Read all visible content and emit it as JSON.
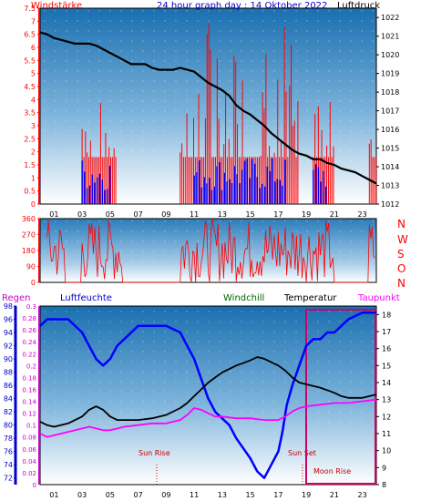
{
  "header": {
    "left": "Windstärke",
    "center": "24 hour graph day : 14 Oktober 2022",
    "right": "Luftdruck"
  },
  "wind_direction_labels": [
    "N",
    "W",
    "S",
    "O",
    "N"
  ],
  "bottom_headers": {
    "regen": "Regen",
    "luftfeuchte": "Luftfeuchte",
    "windchill": "Windchill",
    "temperatur": "Temperatur",
    "taupunkt": "Taupunkt"
  },
  "annotations": {
    "sun_rise": "Sun Rise",
    "sun_set": "Sun Set",
    "moon_rise": "Moon Rise"
  },
  "colors": {
    "bg_top": "#1a6fb0",
    "bg_bottom": "#ffffff",
    "wind": "#ff0000",
    "gust": "#0000ff",
    "pressure": "#000000",
    "humidity": "#0000ff",
    "temperature": "#000000",
    "dewpoint": "#ff00ff",
    "windchill": "#006400",
    "rain": "#ff0000",
    "moon": "#cc0066"
  },
  "chart_data": [
    {
      "type": "line",
      "panel": "wind-pressure",
      "x_ticks": [
        "01",
        "03",
        "05",
        "07",
        "09",
        "11",
        "13",
        "15",
        "17",
        "19",
        "21",
        "23"
      ],
      "xlim": [
        0,
        24
      ],
      "left_axis": {
        "label": "Windstärke",
        "ylim": [
          0,
          7.5
        ],
        "ticks": [
          "0",
          "0.5",
          "1",
          "1.5",
          "2",
          "2.5",
          "3",
          "3.5",
          "4",
          "4.5",
          "5",
          "5.5",
          "6",
          "6.5",
          "7",
          "7.5"
        ]
      },
      "right_axis": {
        "label": "Luftdruck",
        "ylim": [
          1012,
          1022.5
        ],
        "ticks": [
          "1012",
          "1013",
          "1014",
          "1015",
          "1016",
          "1017",
          "1018",
          "1019",
          "1020",
          "1021",
          "1022"
        ]
      },
      "series": [
        {
          "name": "Luftdruck",
          "axis": "right",
          "x": [
            0,
            0.5,
            1,
            1.5,
            2,
            2.5,
            3,
            3.5,
            4,
            4.5,
            5,
            5.5,
            6,
            6.5,
            7,
            7.5,
            8,
            8.5,
            9,
            9.5,
            10,
            10.5,
            11,
            11.5,
            12,
            12.5,
            13,
            13.5,
            14,
            14.5,
            15,
            15.5,
            16,
            16.5,
            17,
            17.5,
            18,
            18.5,
            19,
            19.5,
            20,
            20.5,
            21,
            21.5,
            22,
            22.5,
            23,
            23.5,
            24
          ],
          "y": [
            1021.2,
            1021.1,
            1020.9,
            1020.8,
            1020.7,
            1020.6,
            1020.6,
            1020.6,
            1020.5,
            1020.3,
            1020.1,
            1019.9,
            1019.7,
            1019.5,
            1019.5,
            1019.5,
            1019.3,
            1019.2,
            1019.2,
            1019.2,
            1019.3,
            1019.2,
            1019.1,
            1018.8,
            1018.5,
            1018.3,
            1018.1,
            1017.8,
            1017.3,
            1017.0,
            1016.8,
            1016.5,
            1016.2,
            1015.8,
            1015.5,
            1015.2,
            1014.9,
            1014.7,
            1014.6,
            1014.4,
            1014.4,
            1014.2,
            1014.1,
            1013.9,
            1013.8,
            1013.7,
            1013.5,
            1013.3,
            1013.1
          ]
        }
      ]
    },
    {
      "type": "line",
      "panel": "wind-direction",
      "xlim": [
        0,
        24
      ],
      "ylim": [
        0,
        360
      ],
      "ticks": [
        "0",
        "90",
        "180",
        "270",
        "360"
      ]
    },
    {
      "type": "line",
      "panel": "humidity-temperature",
      "x_ticks": [
        "01",
        "03",
        "05",
        "07",
        "09",
        "11",
        "13",
        "15",
        "17",
        "19",
        "21",
        "23"
      ],
      "xlim": [
        0,
        24
      ],
      "humidity_axis": {
        "label": "Luftfeuchte",
        "ylim": [
          71,
          98
        ],
        "ticks": [
          "72",
          "74",
          "76",
          "78",
          "80",
          "82",
          "84",
          "86",
          "88",
          "90",
          "92",
          "94",
          "96",
          "98"
        ]
      },
      "rain_axis": {
        "label": "Regen",
        "ylim": [
          0,
          0.3
        ],
        "ticks": [
          "0",
          "0.02",
          "0.04",
          "0.06",
          "0.08",
          "0.1",
          "0.12",
          "0.14",
          "0.16",
          "0.18",
          "0.2",
          "0.22",
          "0.24",
          "0.26",
          "0.28",
          "0.3"
        ]
      },
      "temp_axis": {
        "label": "Temperatur",
        "ylim": [
          8,
          18.5
        ],
        "ticks": [
          "8",
          "9",
          "10",
          "11",
          "12",
          "13",
          "14",
          "15",
          "16",
          "17",
          "18"
        ]
      },
      "series": [
        {
          "name": "Luftfeuchte",
          "axis": "humidity",
          "x": [
            0,
            0.5,
            1,
            2,
            3,
            3.5,
            4,
            4.5,
            5,
            5.5,
            6,
            7,
            8,
            9,
            10,
            10.5,
            11,
            11.5,
            12,
            12.5,
            13,
            13.5,
            14,
            15,
            15.5,
            16,
            16.5,
            17,
            17.3,
            17.6,
            18,
            18.5,
            19,
            19.5,
            20,
            20.5,
            21,
            21.5,
            22,
            23,
            24
          ],
          "y": [
            95,
            96,
            96,
            96,
            94,
            92,
            90,
            89,
            90,
            92,
            93,
            95,
            95,
            95,
            94,
            92,
            90,
            87,
            84,
            82,
            81,
            80,
            78,
            75,
            73,
            72,
            74,
            76,
            79,
            83,
            86,
            89,
            92,
            93,
            93,
            94,
            94,
            95,
            96,
            97,
            97
          ]
        },
        {
          "name": "Temperatur",
          "axis": "temp",
          "x": [
            0,
            0.5,
            1,
            2,
            3,
            3.5,
            4,
            4.5,
            5,
            5.5,
            6,
            7,
            8,
            9,
            10,
            10.5,
            11,
            11.5,
            12,
            12.5,
            13,
            13.5,
            14,
            15,
            15.5,
            16,
            16.5,
            17,
            17.5,
            18,
            18.5,
            19,
            20,
            21,
            21.5,
            22,
            23,
            24
          ],
          "y": [
            11.7,
            11.5,
            11.4,
            11.6,
            12.0,
            12.4,
            12.6,
            12.4,
            12.0,
            11.8,
            11.8,
            11.8,
            11.9,
            12.1,
            12.5,
            12.8,
            13.2,
            13.6,
            14.0,
            14.3,
            14.6,
            14.8,
            15.0,
            15.3,
            15.5,
            15.4,
            15.2,
            15.0,
            14.7,
            14.3,
            14.0,
            13.9,
            13.7,
            13.4,
            13.2,
            13.1,
            13.1,
            13.3
          ]
        },
        {
          "name": "Taupunkt",
          "axis": "temp",
          "x": [
            0,
            0.5,
            1,
            2,
            3,
            3.5,
            4,
            4.5,
            5,
            5.5,
            6,
            7,
            8,
            9,
            10,
            10.5,
            11,
            11.5,
            12,
            12.5,
            13,
            14,
            15,
            16,
            17,
            17.5,
            18,
            18.5,
            19,
            20,
            21,
            22,
            23,
            24
          ],
          "y": [
            11.0,
            10.8,
            10.9,
            11.1,
            11.3,
            11.4,
            11.3,
            11.2,
            11.2,
            11.3,
            11.4,
            11.5,
            11.6,
            11.6,
            11.8,
            12.1,
            12.5,
            12.4,
            12.2,
            12.0,
            12.0,
            11.9,
            11.9,
            11.8,
            11.8,
            12.0,
            12.3,
            12.5,
            12.6,
            12.7,
            12.8,
            12.8,
            12.9,
            13.0
          ]
        }
      ]
    }
  ]
}
